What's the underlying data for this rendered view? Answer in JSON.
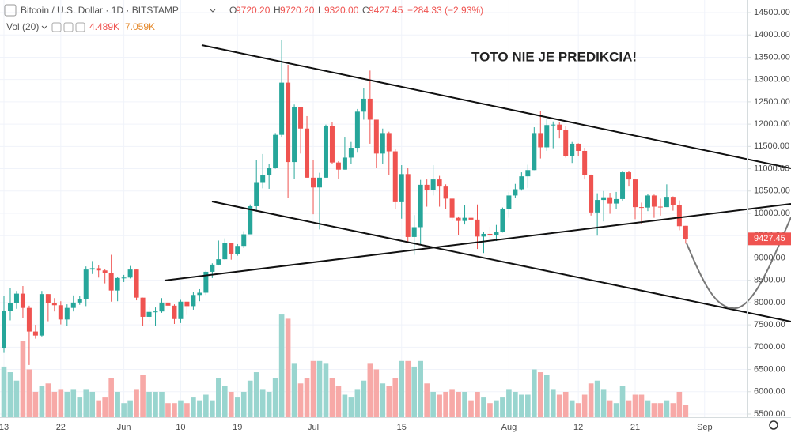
{
  "chart_data": {
    "type": "candlestick",
    "title": "Bitcoin / U.S. Dollar · 1D · BITSTAMP",
    "ohlc_legend": [
      {
        "key": "O",
        "value": "9720.20"
      },
      {
        "key": "H",
        "value": "9720.20"
      },
      {
        "key": "L",
        "value": "9320.00"
      },
      {
        "key": "C",
        "value": "9427.45"
      }
    ],
    "change": "−284.33 (−2.93%)",
    "volume_legend": {
      "name": "Vol (20)",
      "values": [
        "4.489K",
        "7.059K"
      ]
    },
    "annotation": "TOTO NIE JE PREDIKCIA!",
    "up_color": "#26a69a",
    "down_color": "#ef5350",
    "volume_up_color": "#99d5cf",
    "volume_down_color": "#f7a9a7",
    "grid": true,
    "categories": [
      "May 13",
      "May 14",
      "May 15",
      "May 16",
      "May 17",
      "May 18",
      "May 19",
      "May 20",
      "May 21",
      "May 22",
      "May 23",
      "May 24",
      "May 25",
      "May 26",
      "May 27",
      "May 28",
      "May 29",
      "May 30",
      "May 31",
      "Jun 1",
      "Jun 2",
      "Jun 3",
      "Jun 4",
      "Jun 5",
      "Jun 6",
      "Jun 7",
      "Jun 8",
      "Jun 9",
      "Jun 10",
      "Jun 11",
      "Jun 12",
      "Jun 13",
      "Jun 14",
      "Jun 15",
      "Jun 16",
      "Jun 17",
      "Jun 18",
      "Jun 19",
      "Jun 20",
      "Jun 21",
      "Jun 22",
      "Jun 23",
      "Jun 24",
      "Jun 25",
      "Jun 26",
      "Jun 27",
      "Jun 28",
      "Jun 29",
      "Jun 30",
      "Jul 1",
      "Jul 2",
      "Jul 3",
      "Jul 4",
      "Jul 5",
      "Jul 6",
      "Jul 7",
      "Jul 8",
      "Jul 9",
      "Jul 10",
      "Jul 11",
      "Jul 12",
      "Jul 13",
      "Jul 14",
      "Jul 15",
      "Jul 16",
      "Jul 17",
      "Jul 18",
      "Jul 19",
      "Jul 20",
      "Jul 21",
      "Jul 22",
      "Jul 23",
      "Jul 24",
      "Jul 25",
      "Jul 26",
      "Jul 27",
      "Jul 28",
      "Jul 29",
      "Jul 30",
      "Jul 31",
      "Aug 1",
      "Aug 2",
      "Aug 3",
      "Aug 4",
      "Aug 5",
      "Aug 6",
      "Aug 7",
      "Aug 8",
      "Aug 9",
      "Aug 10",
      "Aug 11",
      "Aug 12",
      "Aug 13",
      "Aug 14",
      "Aug 15",
      "Aug 16",
      "Aug 17",
      "Aug 18",
      "Aug 19",
      "Aug 20",
      "Aug 21",
      "Aug 22",
      "Aug 23",
      "Aug 24",
      "Aug 25",
      "Aug 26",
      "Aug 27",
      "Aug 28",
      "Aug 29"
    ],
    "open": [
      6970,
      7810,
      7990,
      8200,
      7880,
      7350,
      7260,
      8190,
      7990,
      7940,
      7620,
      7880,
      8000,
      8070,
      8740,
      8770,
      8720,
      8660,
      8270,
      8550,
      8560,
      8740,
      8110,
      7680,
      7790,
      7800,
      8000,
      7930,
      7630,
      8020,
      7920,
      8170,
      8220,
      8690,
      8850,
      8970,
      9330,
      9080,
      9270,
      9530,
      10160,
      10700,
      10850,
      11020,
      11760,
      12930,
      11150,
      12390,
      11900,
      10800,
      10580,
      10800,
      11960,
      11140,
      10980,
      11250,
      11470,
      12280,
      12570,
      12100,
      11340,
      11800,
      11390,
      10250,
      10880,
      9470,
      9690,
      10640,
      10530,
      10760,
      10600,
      10330,
      9900,
      9830,
      9900,
      9860,
      9480,
      9540,
      9520,
      9590,
      10090,
      10400,
      10540,
      10830,
      10970,
      11800,
      11480,
      11980,
      11990,
      11860,
      11290,
      11560,
      11400,
      10860,
      10020,
      10300,
      10360,
      10220,
      10320,
      10920,
      10760,
      10140,
      10130,
      10400,
      10150,
      10140,
      10370,
      10190,
      9720.2
    ],
    "high": [
      8150,
      8330,
      8260,
      8370,
      7930,
      7500,
      8260,
      8190,
      8100,
      8030,
      7960,
      8160,
      8150,
      8810,
      8930,
      8830,
      8760,
      9070,
      8580,
      8620,
      8820,
      8740,
      8110,
      7900,
      7890,
      8100,
      8050,
      7960,
      8060,
      8020,
      8240,
      8300,
      8720,
      8880,
      9390,
      9440,
      9340,
      9310,
      9600,
      10200,
      11200,
      11330,
      11100,
      11800,
      13880,
      13330,
      12440,
      12390,
      12180,
      11190,
      10910,
      11990,
      12040,
      11170,
      11700,
      11600,
      12340,
      12800,
      13200,
      12100,
      11900,
      11830,
      11450,
      11080,
      11020,
      9960,
      10750,
      10760,
      11080,
      10840,
      10650,
      10330,
      9930,
      10180,
      9920,
      10200,
      9590,
      9700,
      9740,
      10130,
      10480,
      10660,
      10920,
      11090,
      11930,
      12300,
      12120,
      12060,
      12050,
      11960,
      11600,
      11570,
      11470,
      10870,
      10450,
      10500,
      10460,
      10480,
      10940,
      10950,
      10770,
      10240,
      10440,
      10420,
      10330,
      10650,
      10380,
      10290,
      9720.2
    ],
    "low": [
      6870,
      7600,
      7860,
      7660,
      6600,
      7190,
      7240,
      7580,
      7800,
      7510,
      7470,
      7800,
      7950,
      7920,
      8640,
      8560,
      8430,
      8020,
      8030,
      8460,
      8540,
      8050,
      7470,
      7580,
      7470,
      7770,
      7800,
      7520,
      7540,
      7720,
      7840,
      8030,
      8170,
      8550,
      8830,
      8960,
      8960,
      9050,
      9220,
      9530,
      10040,
      10560,
      10550,
      11000,
      11700,
      10350,
      10770,
      11340,
      10800,
      9980,
      9640,
      10800,
      11100,
      10780,
      10980,
      11100,
      11360,
      12100,
      11560,
      11010,
      11100,
      10860,
      10100,
      9880,
      9370,
      9070,
      9300,
      10150,
      10400,
      10150,
      10100,
      9850,
      9520,
      9750,
      9680,
      9200,
      9110,
      9400,
      9380,
      9570,
      9900,
      10340,
      10510,
      10570,
      10970,
      11230,
      11400,
      11460,
      11680,
      11250,
      11130,
      11280,
      10760,
      9950,
      9500,
      9820,
      9990,
      10090,
      10270,
      10600,
      9870,
      9760,
      10050,
      9900,
      9950,
      10140,
      10060,
      9620,
      9320
    ],
    "close": [
      7810,
      7990,
      8200,
      7880,
      7350,
      7260,
      8190,
      7990,
      7940,
      7620,
      7880,
      8000,
      8070,
      8740,
      8770,
      8720,
      8660,
      8270,
      8550,
      8560,
      8740,
      8110,
      7680,
      7790,
      7800,
      8000,
      7930,
      7630,
      8020,
      7920,
      8170,
      8220,
      8690,
      8850,
      8970,
      9330,
      9080,
      9270,
      9530,
      10160,
      10700,
      10850,
      11020,
      11760,
      12930,
      11150,
      12390,
      11900,
      10800,
      10580,
      10800,
      11960,
      11140,
      10980,
      11250,
      11470,
      12280,
      12570,
      12100,
      11340,
      11800,
      11390,
      10250,
      10880,
      9470,
      9690,
      10640,
      10530,
      10760,
      10600,
      10330,
      9900,
      9830,
      9900,
      9860,
      9480,
      9540,
      9520,
      9590,
      10090,
      10400,
      10540,
      10830,
      10970,
      11800,
      11480,
      11980,
      11990,
      11860,
      11290,
      11560,
      11400,
      10860,
      10020,
      10300,
      10360,
      10220,
      10320,
      10920,
      10760,
      10140,
      10130,
      10400,
      10150,
      10140,
      10370,
      10190,
      9711.78,
      9427.45
    ],
    "volume": [
      18,
      16,
      13,
      27,
      17,
      9,
      11,
      12,
      9,
      10,
      9,
      10,
      7,
      10,
      9,
      6,
      7,
      14,
      9,
      5,
      6,
      10,
      15,
      9,
      9,
      9,
      5,
      5,
      6,
      5,
      7,
      6,
      8,
      6,
      14,
      11,
      9,
      7,
      9,
      13,
      16,
      10,
      9,
      14,
      36.5,
      35,
      19,
      12,
      14,
      20,
      20,
      19,
      14,
      11,
      8,
      7,
      10,
      13,
      19,
      17,
      12,
      11,
      14,
      20,
      20,
      18,
      20,
      12,
      9,
      8,
      9,
      10,
      9,
      9,
      6,
      9,
      7,
      5,
      6,
      7,
      10,
      9,
      8,
      8,
      17,
      16,
      15,
      10,
      8,
      9,
      6,
      5,
      8,
      12,
      13,
      10,
      6,
      5,
      11,
      6,
      8,
      8,
      6,
      5,
      5,
      6,
      5,
      9,
      4.489
    ],
    "ylim": [
      5500,
      14500
    ],
    "yticks": [
      {
        "value": 5500,
        "label": "5500.00"
      },
      {
        "value": 6000,
        "label": "6000.00"
      },
      {
        "value": 6500,
        "label": "6500.00"
      },
      {
        "value": 7000,
        "label": "7000.00"
      },
      {
        "value": 7500,
        "label": "7500.00"
      },
      {
        "value": 8000,
        "label": "8000.00"
      },
      {
        "value": 8500,
        "label": "8500.00"
      },
      {
        "value": 9000,
        "label": "9000.00"
      },
      {
        "value": 9500,
        "label": "9500.00"
      },
      {
        "value": 10000,
        "label": "10000.00"
      },
      {
        "value": 10500,
        "label": "10500.00"
      },
      {
        "value": 11000,
        "label": "11000.00"
      },
      {
        "value": 11500,
        "label": "11500.00"
      },
      {
        "value": 12000,
        "label": "12000.00"
      },
      {
        "value": 12500,
        "label": "12500.00"
      },
      {
        "value": 13000,
        "label": "13000.00"
      },
      {
        "value": 13500,
        "label": "13500.00"
      },
      {
        "value": 14000,
        "label": "14000.00"
      },
      {
        "value": 14500,
        "label": "14500.00"
      }
    ],
    "xticks": [
      {
        "value": "May 13",
        "label": "13"
      },
      {
        "value": "May 22",
        "label": "22"
      },
      {
        "value": "Jun 1",
        "label": "Jun"
      },
      {
        "value": "Jun 10",
        "label": "10"
      },
      {
        "value": "Jun 19",
        "label": "19"
      },
      {
        "value": "Jul 1",
        "label": "Jul"
      },
      {
        "value": "Jul 15",
        "label": "15"
      },
      {
        "value": "Aug 1",
        "label": "Aug"
      },
      {
        "value": "Aug 12",
        "label": "12"
      },
      {
        "value": "Aug 21",
        "label": "21"
      },
      {
        "value": "Sep 1",
        "label": "Sep"
      }
    ]
  }
}
